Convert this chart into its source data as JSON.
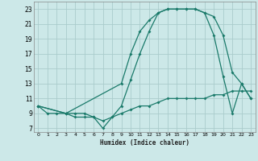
{
  "xlabel": "Humidex (Indice chaleur)",
  "bg_color": "#cce8e8",
  "grid_color": "#aacccc",
  "line_color": "#1a7a6a",
  "xlim": [
    -0.5,
    23.5
  ],
  "ylim": [
    6.5,
    24.0
  ],
  "xticks": [
    0,
    1,
    2,
    3,
    4,
    5,
    6,
    7,
    8,
    9,
    10,
    11,
    12,
    13,
    14,
    15,
    16,
    17,
    18,
    19,
    20,
    21,
    22,
    23
  ],
  "yticks": [
    7,
    9,
    11,
    13,
    15,
    17,
    19,
    21,
    23
  ],
  "line1_x": [
    0,
    1,
    2,
    3,
    4,
    5,
    6,
    7,
    8,
    9,
    10,
    11,
    12,
    13,
    14,
    15,
    16,
    17,
    18,
    19,
    20,
    21,
    22,
    23
  ],
  "line1_y": [
    10,
    9,
    9,
    9,
    9,
    9,
    8.5,
    8,
    8.5,
    9,
    9.5,
    10,
    10,
    10.5,
    11,
    11,
    11,
    11,
    11,
    11.5,
    11.5,
    12,
    12,
    12
  ],
  "line2_x": [
    0,
    3,
    9,
    10,
    11,
    12,
    13,
    14,
    15,
    16,
    17,
    18,
    19,
    20,
    21,
    22,
    23
  ],
  "line2_y": [
    10,
    9,
    13,
    17,
    20,
    21.5,
    22.5,
    23,
    23,
    23,
    23,
    22.5,
    22,
    19.5,
    14.5,
    13,
    11
  ],
  "line3_x": [
    0,
    3,
    4,
    5,
    6,
    7,
    8,
    9,
    10,
    11,
    12,
    13,
    14,
    15,
    16,
    17,
    18,
    19,
    20,
    21,
    22,
    23
  ],
  "line3_y": [
    10,
    9,
    8.5,
    8.5,
    8.5,
    7,
    8.5,
    10,
    13.5,
    17,
    20,
    22.5,
    23,
    23,
    23,
    23,
    22.5,
    19.5,
    14,
    9,
    13,
    11
  ]
}
